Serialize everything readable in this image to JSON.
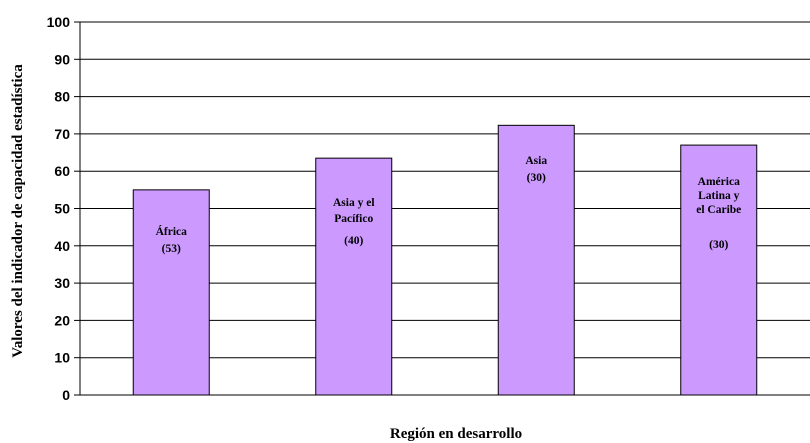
{
  "chart_data": {
    "type": "bar",
    "title": "",
    "xlabel": "Región en desarrollo",
    "ylabel": "Valores del indicador de capacidad estadística",
    "ylim": [
      0,
      100
    ],
    "yticks": [
      0,
      10,
      20,
      30,
      40,
      50,
      60,
      70,
      80,
      90,
      100
    ],
    "grid": true,
    "bar_color": "#cc99ff",
    "categories": [
      "África",
      "Asia y el Pacífico",
      "Asia",
      "América Latina y el Caribe"
    ],
    "values": [
      55,
      63.5,
      72.3,
      67
    ],
    "data_labels": [
      {
        "name": [
          "África"
        ],
        "count": "(53)"
      },
      {
        "name": [
          "Asia y el",
          "Pacífico"
        ],
        "count": "(40)"
      },
      {
        "name": [
          "Asia"
        ],
        "count": "(30)"
      },
      {
        "name": [
          "América",
          "Latina y",
          "el Caribe"
        ],
        "count": "(30)"
      }
    ]
  }
}
